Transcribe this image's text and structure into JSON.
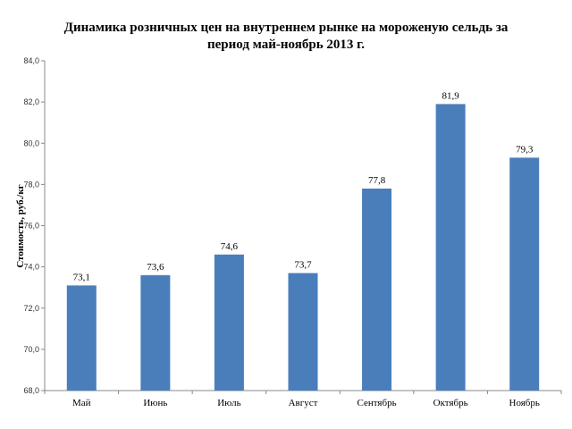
{
  "chart_data": {
    "type": "bar",
    "title": [
      "Динамика розничных цен на внутреннем рынке на мороженую сельдь за",
      "период май-ноябрь 2013 г."
    ],
    "ylabel": "Стоимость, руб./кг",
    "xlabel": "",
    "categories": [
      "Май",
      "Июнь",
      "Июль",
      "Август",
      "Сентябрь",
      "Октябрь",
      "Ноябрь"
    ],
    "values": [
      73.1,
      73.6,
      74.6,
      73.7,
      77.8,
      81.9,
      79.3
    ],
    "value_labels": [
      "73,1",
      "73,6",
      "74,6",
      "73,7",
      "77,8",
      "81,9",
      "79,3"
    ],
    "ylim": [
      68,
      84
    ],
    "yticks": [
      68,
      70,
      72,
      74,
      76,
      78,
      80,
      82,
      84
    ],
    "ytick_labels": [
      "68,0",
      "70,0",
      "72,0",
      "74,0",
      "76,0",
      "78,0",
      "80,0",
      "82,0",
      "84,0"
    ],
    "grid": false,
    "legend": "none",
    "bar_color": "#4a7ebb"
  }
}
